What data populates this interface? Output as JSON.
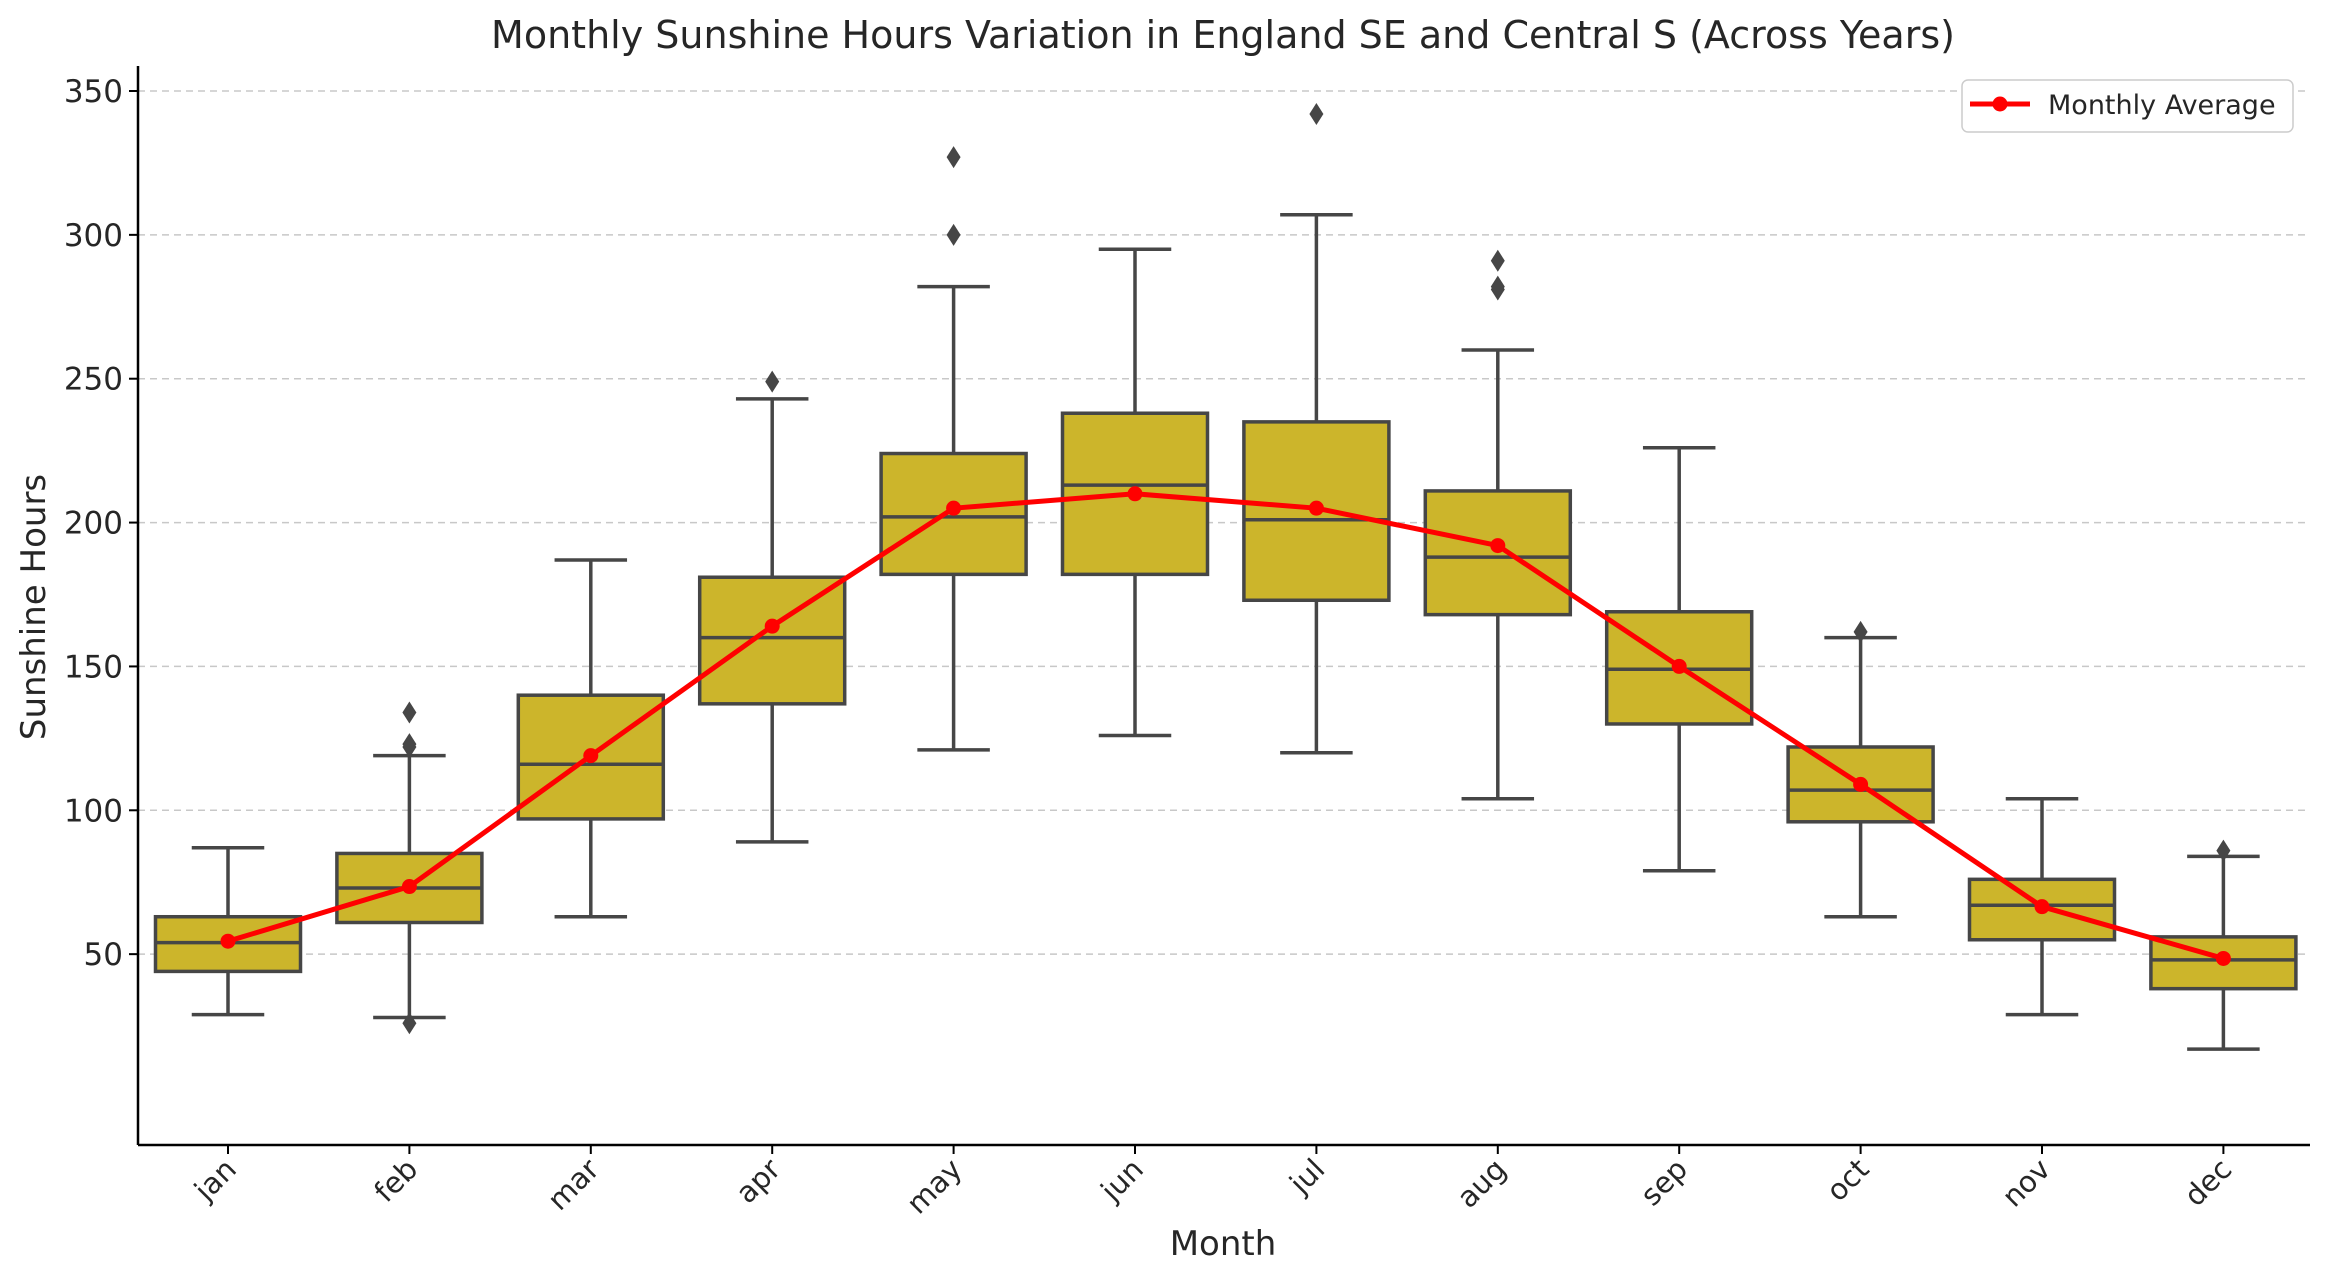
{
  "chart_data": {
    "type": "box",
    "title": "Monthly Sunshine Hours Variation in England SE and Central S (Across Years)",
    "xlabel": "Month",
    "ylabel": "Sunshine Hours",
    "ylim": [
      0,
      360
    ],
    "yticks": [
      50,
      100,
      150,
      200,
      250,
      300,
      350
    ],
    "grid": "horizontal dashed",
    "legend_position": "top-right",
    "colors": {
      "box": "#ccb52b",
      "box_edge": "#464646",
      "average_line": "#ff0000",
      "grid": "#c8c8c8"
    },
    "categories": [
      "jan",
      "feb",
      "mar",
      "apr",
      "may",
      "jun",
      "jul",
      "aug",
      "sep",
      "oct",
      "nov",
      "dec"
    ],
    "boxes": [
      {
        "whisker_low": 29,
        "q1": 44,
        "median": 54,
        "q3": 63,
        "whisker_high": 87,
        "outliers": []
      },
      {
        "whisker_low": 28,
        "q1": 61,
        "median": 73,
        "q3": 85,
        "whisker_high": 119,
        "outliers": [
          26,
          122,
          123,
          134
        ]
      },
      {
        "whisker_low": 63,
        "q1": 97,
        "median": 116,
        "q3": 140,
        "whisker_high": 187,
        "outliers": []
      },
      {
        "whisker_low": 89,
        "q1": 137,
        "median": 160,
        "q3": 181,
        "whisker_high": 243,
        "outliers": [
          249
        ]
      },
      {
        "whisker_low": 121,
        "q1": 182,
        "median": 202,
        "q3": 224,
        "whisker_high": 282,
        "outliers": [
          300,
          327
        ]
      },
      {
        "whisker_low": 126,
        "q1": 182,
        "median": 213,
        "q3": 238,
        "whisker_high": 295,
        "outliers": []
      },
      {
        "whisker_low": 120,
        "q1": 173,
        "median": 201,
        "q3": 235,
        "whisker_high": 307,
        "outliers": [
          342
        ]
      },
      {
        "whisker_low": 104,
        "q1": 168,
        "median": 188,
        "q3": 211,
        "whisker_high": 260,
        "outliers": [
          281,
          282,
          291
        ]
      },
      {
        "whisker_low": 79,
        "q1": 130,
        "median": 149,
        "q3": 169,
        "whisker_high": 226,
        "outliers": []
      },
      {
        "whisker_low": 63,
        "q1": 96,
        "median": 107,
        "q3": 122,
        "whisker_high": 160,
        "outliers": [
          162
        ]
      },
      {
        "whisker_low": 29,
        "q1": 55,
        "median": 67,
        "q3": 76,
        "whisker_high": 104,
        "outliers": []
      },
      {
        "whisker_low": 17,
        "q1": 38,
        "median": 48,
        "q3": 56,
        "whisker_high": 84,
        "outliers": [
          86
        ]
      }
    ],
    "series": [
      {
        "name": "Monthly Average",
        "values": [
          54.5,
          73.5,
          119,
          164,
          205,
          210,
          205,
          192,
          150,
          109,
          66.5,
          48.5
        ]
      }
    ]
  }
}
